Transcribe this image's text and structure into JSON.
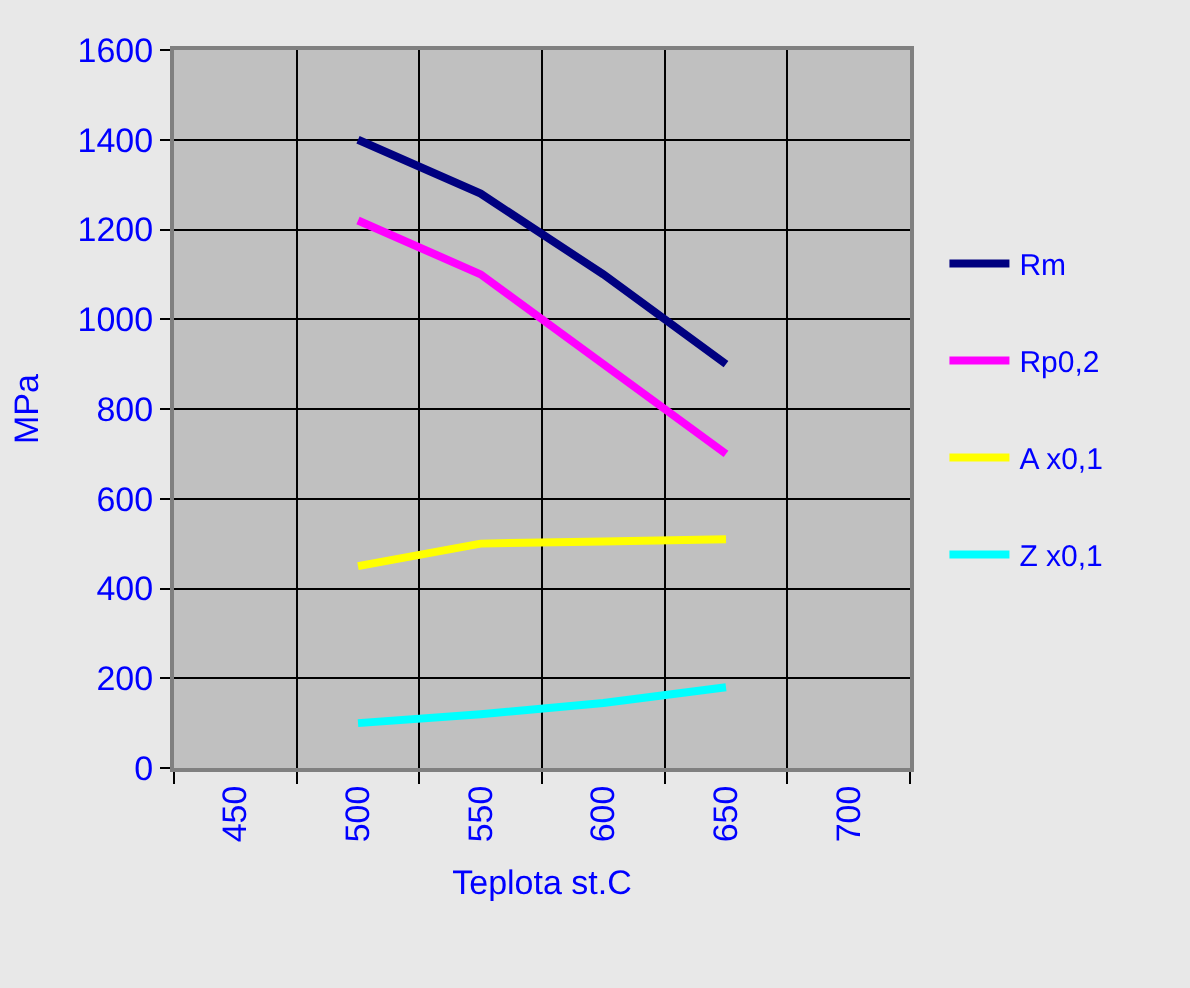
{
  "chart_data": {
    "type": "line",
    "xlabel": "Teplota st.C",
    "ylabel": "MPa",
    "categories": [
      "450",
      "500",
      "550",
      "600",
      "650",
      "700"
    ],
    "series": [
      {
        "name": "Rm",
        "color": "#000080",
        "values": [
          null,
          1400,
          1280,
          1100,
          900,
          null
        ]
      },
      {
        "name": "Rp0,2",
        "color": "#ff00ff",
        "values": [
          null,
          1220,
          1100,
          900,
          700,
          null
        ]
      },
      {
        "name": "A x0,1",
        "color": "#ffff00",
        "values": [
          null,
          450,
          500,
          505,
          510,
          null
        ]
      },
      {
        "name": "Z x0,1",
        "color": "#00ffff",
        "values": [
          null,
          100,
          120,
          145,
          180,
          null
        ]
      }
    ],
    "ylim": [
      0,
      1600
    ],
    "yticks": [
      0,
      200,
      400,
      600,
      800,
      1000,
      1200,
      1400,
      1600
    ],
    "grid": true,
    "legend": "right",
    "marker": "none",
    "line_style": "solid"
  }
}
